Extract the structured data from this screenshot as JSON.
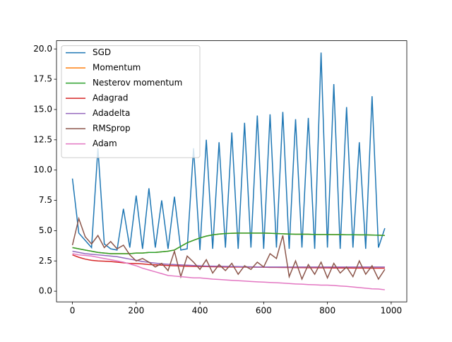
{
  "chart_data": {
    "type": "line",
    "x": [
      0,
      20,
      40,
      60,
      80,
      100,
      120,
      140,
      160,
      180,
      200,
      220,
      240,
      260,
      280,
      300,
      320,
      340,
      360,
      380,
      400,
      420,
      440,
      460,
      480,
      500,
      520,
      540,
      560,
      580,
      600,
      620,
      640,
      660,
      680,
      700,
      720,
      740,
      760,
      780,
      800,
      820,
      840,
      860,
      880,
      900,
      920,
      940,
      960,
      980
    ],
    "series": [
      {
        "name": "SGD",
        "color": "#1f77b4",
        "values": [
          9.3,
          4.8,
          4.2,
          3.6,
          11.8,
          3.9,
          3.5,
          3.4,
          6.8,
          3.6,
          7.9,
          3.5,
          8.5,
          3.6,
          7.5,
          3.5,
          7.8,
          3.4,
          3.5,
          11.8,
          3.4,
          12.5,
          3.5,
          12.3,
          3.6,
          13.1,
          3.5,
          13.9,
          3.6,
          14.5,
          3.5,
          14.6,
          3.6,
          14.8,
          3.5,
          14.2,
          3.6,
          14.3,
          3.5,
          19.7,
          3.6,
          17.1,
          3.5,
          15.2,
          3.6,
          12.3,
          3.5,
          16.1,
          3.6,
          5.2
        ]
      },
      {
        "name": "Momentum",
        "color": "#ff7f0e",
        "values": [
          3.6,
          3.5,
          3.4,
          3.3,
          3.2,
          3.15,
          3.1,
          3.1,
          3.1,
          3.1,
          3.15,
          3.15,
          3.2,
          3.2,
          3.25,
          3.3,
          3.4,
          3.7,
          4.0,
          4.2,
          4.4,
          4.55,
          4.65,
          4.72,
          4.76,
          4.78,
          4.8,
          4.8,
          4.8,
          4.8,
          4.8,
          4.78,
          4.76,
          4.74,
          4.72,
          4.7,
          4.7,
          4.7,
          4.68,
          4.68,
          4.68,
          4.67,
          4.67,
          4.66,
          4.66,
          4.65,
          4.65,
          4.64,
          4.62,
          4.6
        ]
      },
      {
        "name": "Nesterov momentum",
        "color": "#2ca02c",
        "values": [
          3.6,
          3.5,
          3.4,
          3.3,
          3.2,
          3.15,
          3.1,
          3.1,
          3.1,
          3.1,
          3.15,
          3.15,
          3.2,
          3.2,
          3.25,
          3.3,
          3.4,
          3.7,
          4.0,
          4.2,
          4.4,
          4.55,
          4.65,
          4.72,
          4.76,
          4.78,
          4.8,
          4.8,
          4.8,
          4.8,
          4.8,
          4.78,
          4.76,
          4.74,
          4.72,
          4.7,
          4.7,
          4.7,
          4.68,
          4.68,
          4.68,
          4.67,
          4.67,
          4.66,
          4.66,
          4.65,
          4.65,
          4.64,
          4.62,
          4.6
        ]
      },
      {
        "name": "Adagrad",
        "color": "#d62728",
        "values": [
          3.0,
          2.8,
          2.65,
          2.55,
          2.5,
          2.48,
          2.45,
          2.4,
          2.35,
          2.3,
          2.28,
          2.25,
          2.2,
          2.18,
          2.15,
          2.12,
          2.1,
          2.08,
          2.06,
          2.05,
          2.04,
          2.03,
          2.02,
          2.01,
          2.0,
          2.0,
          2.0,
          1.99,
          1.99,
          1.98,
          1.98,
          1.97,
          1.97,
          1.96,
          1.96,
          1.95,
          1.95,
          1.94,
          1.94,
          1.93,
          1.93,
          1.92,
          1.92,
          1.92,
          1.91,
          1.91,
          1.91,
          1.9,
          1.9,
          1.9
        ]
      },
      {
        "name": "Adadelta",
        "color": "#9467bd",
        "values": [
          3.3,
          3.2,
          3.1,
          3.05,
          3.0,
          2.95,
          2.9,
          2.85,
          2.75,
          2.65,
          2.55,
          2.45,
          2.38,
          2.32,
          2.26,
          2.22,
          2.2,
          2.17,
          2.15,
          2.12,
          2.1,
          2.08,
          2.07,
          2.06,
          2.05,
          2.04,
          2.03,
          2.02,
          2.01,
          2.0,
          2.0,
          2.0,
          2.0,
          2.0,
          2.0,
          2.0,
          2.0,
          2.0,
          2.0,
          2.0,
          2.0,
          2.0,
          2.0,
          2.0,
          2.0,
          2.0,
          2.0,
          2.0,
          2.0,
          2.0
        ]
      },
      {
        "name": "RMSprop",
        "color": "#8c564b",
        "values": [
          3.8,
          6.0,
          4.5,
          3.9,
          4.6,
          3.6,
          4.1,
          3.5,
          3.8,
          3.0,
          2.5,
          2.7,
          2.4,
          2.0,
          2.3,
          1.7,
          3.3,
          1.2,
          2.9,
          2.4,
          1.8,
          2.6,
          1.5,
          2.2,
          1.7,
          2.3,
          1.4,
          2.1,
          1.8,
          2.4,
          2.0,
          3.1,
          2.7,
          4.6,
          1.2,
          2.5,
          1.0,
          2.2,
          1.4,
          2.4,
          1.1,
          2.3,
          1.5,
          2.0,
          1.2,
          2.5,
          1.4,
          2.1,
          1.0,
          1.8
        ]
      },
      {
        "name": "Adam",
        "color": "#e377c2",
        "values": [
          3.1,
          3.0,
          2.95,
          2.9,
          2.8,
          2.7,
          2.6,
          2.5,
          2.4,
          2.25,
          2.1,
          1.9,
          1.75,
          1.6,
          1.45,
          1.3,
          1.25,
          1.2,
          1.15,
          1.1,
          1.1,
          1.05,
          1.0,
          0.97,
          0.93,
          0.9,
          0.87,
          0.84,
          0.8,
          0.77,
          0.75,
          0.72,
          0.7,
          0.67,
          0.63,
          0.6,
          0.58,
          0.55,
          0.53,
          0.5,
          0.5,
          0.47,
          0.43,
          0.4,
          0.35,
          0.3,
          0.25,
          0.2,
          0.18,
          0.12
        ]
      }
    ],
    "xlim": [
      -49.95,
      1048.95
    ],
    "ylim": [
      -0.88,
      20.68
    ],
    "xticks": [
      0,
      200,
      400,
      600,
      800,
      1000
    ],
    "yticks": [
      {
        "value": 0,
        "label": "0.0"
      },
      2.5,
      {
        "value": 5,
        "label": "5.0"
      },
      7.5,
      {
        "value": 10,
        "label": "10.0"
      },
      12.5,
      {
        "value": 15,
        "label": "15.0"
      },
      17.5,
      {
        "value": 20,
        "label": "20.0"
      }
    ],
    "legend": "upper left"
  }
}
